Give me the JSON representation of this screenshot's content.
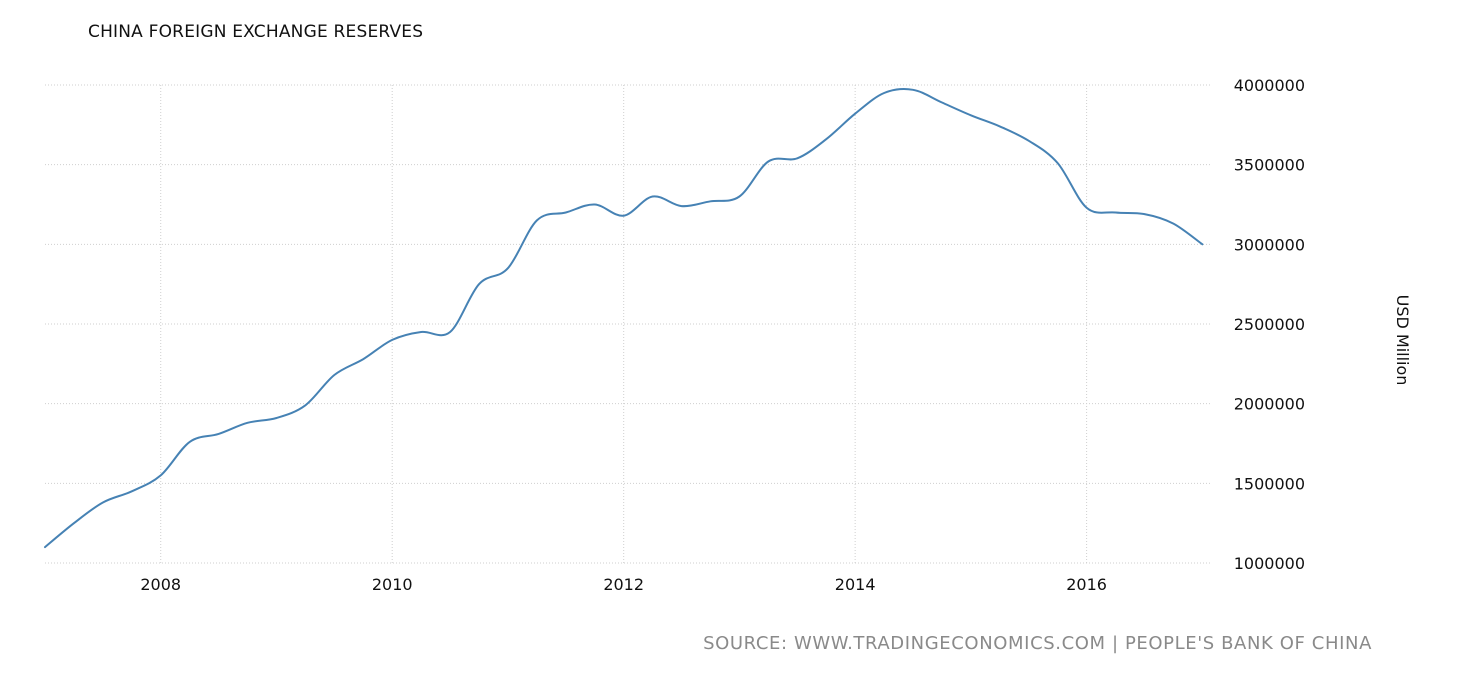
{
  "chart_data": {
    "type": "line",
    "title": "CHINA FOREIGN EXCHANGE RESERVES",
    "ylabel": "USD Million",
    "xlabel": "",
    "source": "SOURCE:  WWW.TRADINGECONOMICS.COM  |  PEOPLE'S BANK OF CHINA",
    "ylim": [
      1000000,
      4000000
    ],
    "xlim": [
      "2007-01",
      "2017-02"
    ],
    "y_ticks": [
      "1000000",
      "1500000",
      "2000000",
      "2500000",
      "3000000",
      "3500000",
      "4000000"
    ],
    "y_tick_values": [
      1000000,
      1500000,
      2000000,
      2500000,
      3000000,
      3500000,
      4000000
    ],
    "x_ticks": [
      "2008",
      "2010",
      "2012",
      "2014",
      "2016"
    ],
    "x_tick_values": [
      "2008-01",
      "2010-01",
      "2012-01",
      "2014-01",
      "2016-01"
    ],
    "grid": true,
    "line_color": "#4682b4",
    "series": [
      {
        "x": [
          "2007-01",
          "2007-04",
          "2007-07",
          "2007-10",
          "2008-01",
          "2008-04",
          "2008-07",
          "2008-10",
          "2009-01",
          "2009-04",
          "2009-07",
          "2009-10",
          "2010-01",
          "2010-04",
          "2010-07",
          "2010-10",
          "2011-01",
          "2011-04",
          "2011-07",
          "2011-10",
          "2012-01",
          "2012-04",
          "2012-07",
          "2012-10",
          "2013-01",
          "2013-04",
          "2013-07",
          "2013-10",
          "2014-01",
          "2014-04",
          "2014-07",
          "2014-10",
          "2015-01",
          "2015-04",
          "2015-07",
          "2015-10",
          "2016-01",
          "2016-04",
          "2016-07",
          "2016-10",
          "2017-01"
        ],
        "values": [
          1100000,
          1250000,
          1380000,
          1450000,
          1550000,
          1760000,
          1810000,
          1880000,
          1910000,
          1990000,
          2180000,
          2280000,
          2400000,
          2450000,
          2450000,
          2750000,
          2850000,
          3150000,
          3200000,
          3250000,
          3180000,
          3300000,
          3240000,
          3270000,
          3300000,
          3520000,
          3540000,
          3660000,
          3820000,
          3950000,
          3970000,
          3890000,
          3810000,
          3740000,
          3650000,
          3510000,
          3230000,
          3200000,
          3190000,
          3130000,
          3000000
        ]
      }
    ]
  }
}
